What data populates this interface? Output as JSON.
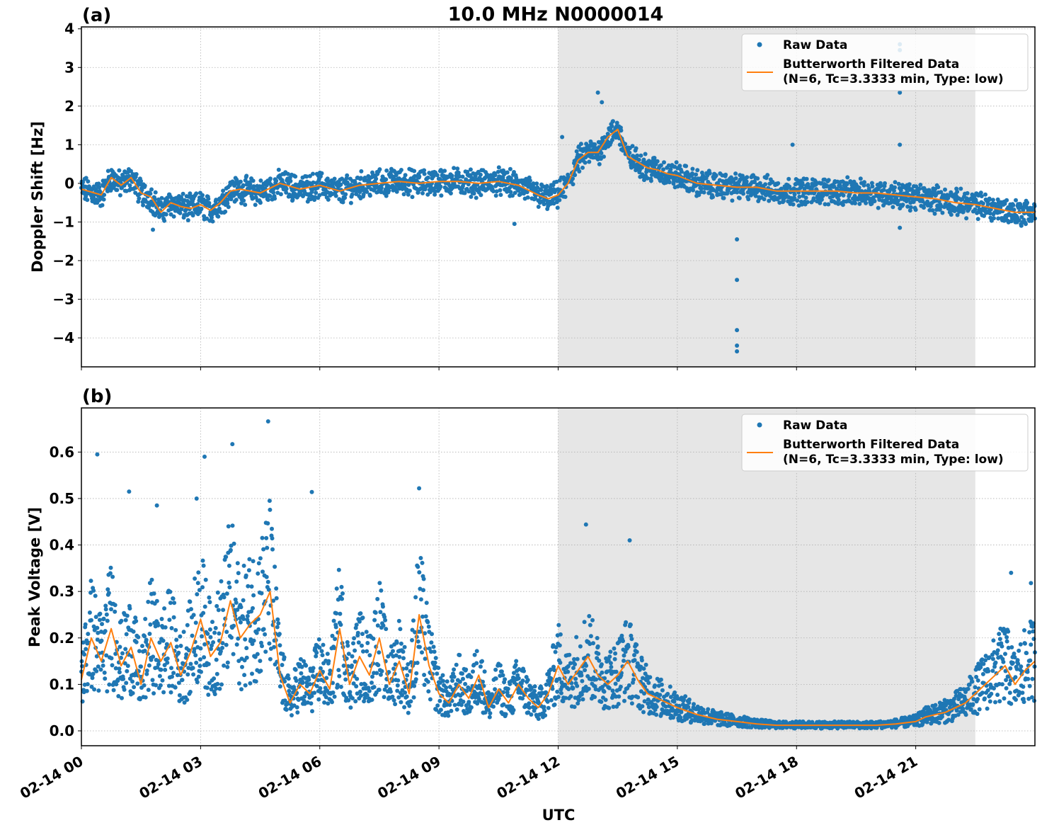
{
  "figure": {
    "title": "10.0 MHz N0000014",
    "xlabel": "UTC",
    "x_ticks": [
      "02-14 00",
      "02-14 03",
      "02-14 06",
      "02-14 09",
      "02-14 12",
      "02-14 15",
      "02-14 18",
      "02-14 21"
    ],
    "shaded_interval_hours": [
      12.0,
      22.5
    ],
    "colors": {
      "raw": "#1f77b4",
      "filtered": "#ff7f0e",
      "shade": "#e6e6e6",
      "grid": "#b0b0b0"
    }
  },
  "chart_data": [
    {
      "type": "scatter",
      "panel_label": "(a)",
      "ylabel": "Doppler Shift [Hz]",
      "xlim_hours": [
        0,
        24
      ],
      "ylim": [
        -4.75,
        4.05
      ],
      "y_ticks": [
        4,
        3,
        2,
        1,
        0,
        -1,
        -2,
        -3,
        -4
      ],
      "y_tick_labels": [
        "4",
        "3",
        "2",
        "1",
        "0",
        "−1",
        "−2",
        "−3",
        "−4"
      ],
      "grid": true,
      "legend": {
        "placement": "top-right",
        "raw_label": "Raw Data",
        "filtered_label_1": "Butterworth Filtered Data",
        "filtered_label_2": "(N=6, Tc=3.3333 min, Type: low)"
      },
      "series": [
        {
          "name": "Butterworth Filtered Data",
          "x_hours": [
            0,
            0.5,
            0.75,
            1.0,
            1.25,
            1.5,
            1.75,
            2.0,
            2.25,
            2.5,
            2.75,
            3.0,
            3.25,
            3.5,
            3.75,
            4.0,
            4.5,
            5.0,
            5.5,
            6.0,
            6.5,
            7.0,
            7.5,
            8.0,
            8.5,
            9.0,
            9.5,
            10.0,
            10.5,
            11.0,
            11.5,
            11.75,
            12.0,
            12.25,
            12.5,
            12.75,
            13.0,
            13.25,
            13.5,
            13.75,
            14.0,
            14.25,
            14.5,
            14.75,
            15.0,
            15.25,
            15.5,
            16.0,
            16.5,
            17.0,
            17.5,
            18.0,
            18.5,
            19.0,
            19.5,
            20.0,
            20.5,
            21.0,
            21.5,
            22.0,
            22.5,
            23.0,
            23.5,
            24.0
          ],
          "values": [
            -0.15,
            -0.3,
            0.15,
            -0.05,
            0.15,
            -0.25,
            -0.35,
            -0.75,
            -0.5,
            -0.6,
            -0.65,
            -0.55,
            -0.7,
            -0.5,
            -0.2,
            -0.15,
            -0.25,
            0.0,
            -0.15,
            -0.05,
            -0.2,
            -0.05,
            0.0,
            0.05,
            0.0,
            0.05,
            0.05,
            0.0,
            0.05,
            -0.05,
            -0.3,
            -0.4,
            -0.3,
            0.0,
            0.6,
            0.8,
            0.8,
            1.2,
            1.4,
            0.7,
            0.55,
            0.4,
            0.35,
            0.25,
            0.2,
            0.1,
            0.0,
            -0.05,
            -0.1,
            -0.1,
            -0.2,
            -0.2,
            -0.2,
            -0.2,
            -0.25,
            -0.25,
            -0.3,
            -0.35,
            -0.4,
            -0.5,
            -0.55,
            -0.65,
            -0.75,
            -0.75
          ]
        }
      ],
      "outliers": [
        {
          "x_hours": 16.5,
          "value": -1.45
        },
        {
          "x_hours": 16.5,
          "value": -2.5
        },
        {
          "x_hours": 16.5,
          "value": -3.8
        },
        {
          "x_hours": 16.5,
          "value": -4.2
        },
        {
          "x_hours": 16.5,
          "value": -4.35
        },
        {
          "x_hours": 20.6,
          "value": 3.6
        },
        {
          "x_hours": 20.6,
          "value": 3.45
        },
        {
          "x_hours": 20.6,
          "value": 2.35
        },
        {
          "x_hours": 20.6,
          "value": 1.0
        },
        {
          "x_hours": 20.6,
          "value": -1.15
        },
        {
          "x_hours": 13.0,
          "value": 2.35
        },
        {
          "x_hours": 13.1,
          "value": 2.1
        },
        {
          "x_hours": 10.9,
          "value": -1.05
        },
        {
          "x_hours": 1.8,
          "value": -1.2
        },
        {
          "x_hours": 17.9,
          "value": 1.0
        },
        {
          "x_hours": 12.1,
          "value": 1.2
        }
      ]
    },
    {
      "type": "scatter",
      "panel_label": "(b)",
      "ylabel": "Peak Voltage [V]",
      "xlim_hours": [
        0,
        24
      ],
      "ylim": [
        -0.032,
        0.695
      ],
      "y_ticks": [
        0.6,
        0.5,
        0.4,
        0.3,
        0.2,
        0.1,
        0.0
      ],
      "y_tick_labels": [
        "0.6",
        "0.5",
        "0.4",
        "0.3",
        "0.2",
        "0.1",
        "0.0"
      ],
      "grid": true,
      "legend": {
        "placement": "top-right",
        "raw_label": "Raw Data",
        "filtered_label_1": "Butterworth Filtered Data",
        "filtered_label_2": "(N=6, Tc=3.3333 min, Type: low)"
      },
      "series": [
        {
          "name": "Butterworth Filtered Data",
          "x_hours": [
            0,
            0.25,
            0.5,
            0.75,
            1.0,
            1.25,
            1.5,
            1.75,
            2.0,
            2.25,
            2.5,
            2.75,
            3.0,
            3.25,
            3.5,
            3.75,
            4.0,
            4.25,
            4.5,
            4.75,
            5.0,
            5.25,
            5.5,
            5.75,
            6.0,
            6.25,
            6.5,
            6.75,
            7.0,
            7.25,
            7.5,
            7.75,
            8.0,
            8.25,
            8.5,
            8.75,
            9.0,
            9.25,
            9.5,
            9.75,
            10.0,
            10.25,
            10.5,
            10.75,
            11.0,
            11.25,
            11.5,
            11.75,
            12.0,
            12.25,
            12.5,
            12.75,
            13.0,
            13.25,
            13.5,
            13.75,
            14.0,
            14.25,
            14.5,
            14.75,
            15.0,
            15.5,
            16.0,
            16.5,
            17.0,
            17.5,
            18.0,
            18.5,
            19.0,
            19.5,
            20.0,
            20.5,
            21.0,
            21.25,
            21.5,
            21.75,
            22.0,
            22.25,
            22.5,
            22.75,
            23.0,
            23.25,
            23.5,
            23.75,
            24.0
          ],
          "values": [
            0.11,
            0.2,
            0.15,
            0.22,
            0.14,
            0.18,
            0.1,
            0.2,
            0.15,
            0.19,
            0.12,
            0.17,
            0.24,
            0.16,
            0.19,
            0.28,
            0.2,
            0.23,
            0.25,
            0.3,
            0.12,
            0.06,
            0.1,
            0.08,
            0.13,
            0.09,
            0.22,
            0.1,
            0.16,
            0.12,
            0.2,
            0.1,
            0.15,
            0.08,
            0.25,
            0.14,
            0.08,
            0.06,
            0.1,
            0.07,
            0.12,
            0.05,
            0.09,
            0.06,
            0.1,
            0.07,
            0.05,
            0.08,
            0.14,
            0.1,
            0.13,
            0.16,
            0.12,
            0.1,
            0.12,
            0.15,
            0.11,
            0.08,
            0.07,
            0.06,
            0.05,
            0.035,
            0.025,
            0.02,
            0.015,
            0.012,
            0.012,
            0.012,
            0.012,
            0.012,
            0.012,
            0.015,
            0.02,
            0.03,
            0.035,
            0.04,
            0.05,
            0.06,
            0.08,
            0.1,
            0.12,
            0.14,
            0.1,
            0.13,
            0.15
          ]
        }
      ],
      "spikes": [
        {
          "x_hours": 0.4,
          "value": 0.595
        },
        {
          "x_hours": 1.2,
          "value": 0.515
        },
        {
          "x_hours": 1.9,
          "value": 0.485
        },
        {
          "x_hours": 2.9,
          "value": 0.5
        },
        {
          "x_hours": 3.1,
          "value": 0.59
        },
        {
          "x_hours": 3.8,
          "value": 0.617
        },
        {
          "x_hours": 4.7,
          "value": 0.666
        },
        {
          "x_hours": 5.8,
          "value": 0.514
        },
        {
          "x_hours": 8.5,
          "value": 0.522
        },
        {
          "x_hours": 12.7,
          "value": 0.444
        },
        {
          "x_hours": 13.8,
          "value": 0.41
        },
        {
          "x_hours": 23.4,
          "value": 0.34
        },
        {
          "x_hours": 23.9,
          "value": 0.318
        }
      ]
    }
  ]
}
